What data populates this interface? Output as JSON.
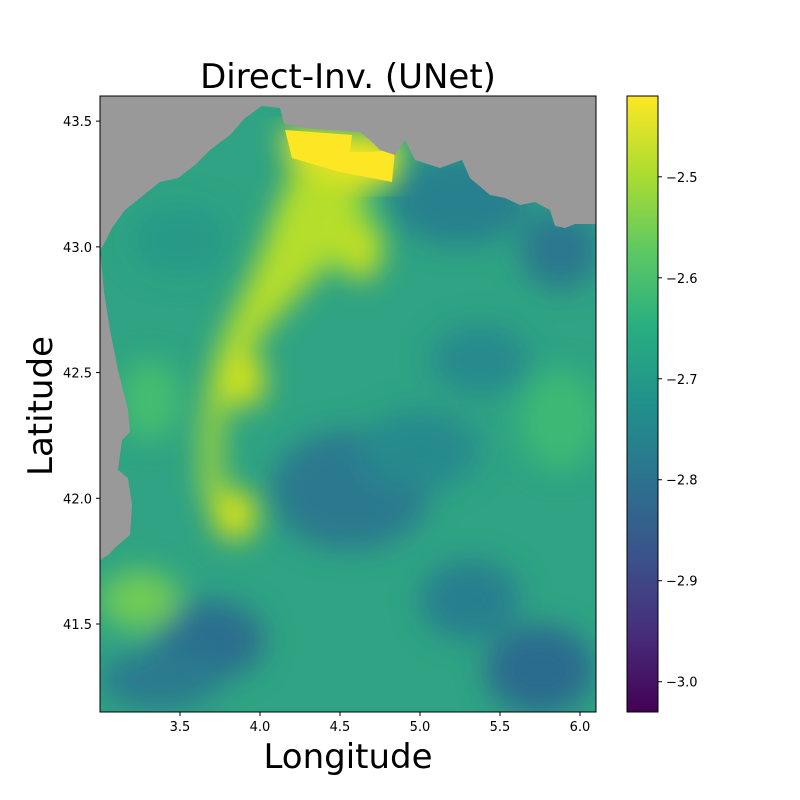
{
  "chart_data": {
    "type": "heatmap",
    "title": "Direct-Inv. (UNet)",
    "xlabel": "Longitude",
    "ylabel": "Latitude",
    "xlim": [
      3.0,
      6.1
    ],
    "ylim": [
      41.15,
      43.6
    ],
    "xticks": [
      3.5,
      4.0,
      4.5,
      5.0,
      5.5,
      6.0
    ],
    "xtick_labels": [
      "3.5",
      "4.0",
      "4.5",
      "5.0",
      "5.5",
      "6.0"
    ],
    "yticks": [
      41.5,
      42.0,
      42.5,
      43.0,
      43.5
    ],
    "ytick_labels": [
      "41.5",
      "42.0",
      "42.5",
      "43.0",
      "43.5"
    ],
    "colorbar": {
      "colormap": "viridis",
      "range": [
        -3.03,
        -2.42
      ],
      "ticks": [
        -3.0,
        -2.9,
        -2.8,
        -2.7,
        -2.6,
        -2.5
      ],
      "tick_labels": [
        "−3.0",
        "−2.9",
        "−2.8",
        "−2.7",
        "−2.6",
        "−2.5"
      ]
    },
    "land_color": "#999999",
    "field_description_values": {
      "background_mean": -2.66,
      "coastal_ridge_max": -2.43,
      "offshore_low_min": -2.8
    },
    "grid": false,
    "legend": "none"
  }
}
